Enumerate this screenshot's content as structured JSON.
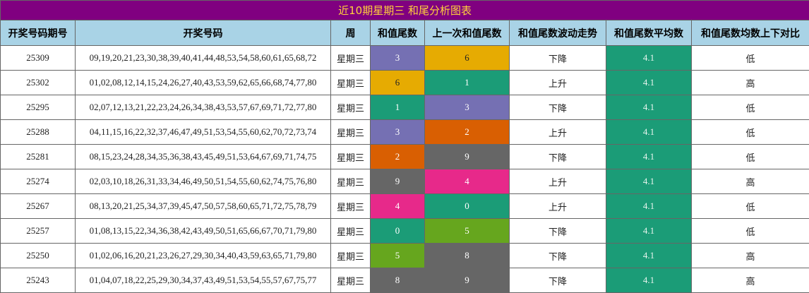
{
  "title": "近10期星期三 和尾分析图表",
  "headers": [
    "开奖号码期号",
    "开奖号码",
    "周",
    "和值尾数",
    "上一次和值尾数",
    "和值尾数波动走势",
    "和值尾数平均数",
    "和值尾数均数上下对比"
  ],
  "digit_colors": {
    "0": "#1b9c77",
    "1": "#1b9c77",
    "2": "#d95f02",
    "3": "#7570b3",
    "4": "#e7298a",
    "5": "#66a61e",
    "6": "#e6ab02",
    "8": "#666666",
    "9": "#666666"
  },
  "rows": [
    {
      "issue": "25309",
      "numbers": "09,19,20,21,23,30,38,39,40,41,44,48,53,54,58,60,61,65,68,72",
      "week": "星期三",
      "tail": "3",
      "prev_tail": "6",
      "trend": "下降",
      "avg": "4.1",
      "compare": "低"
    },
    {
      "issue": "25302",
      "numbers": "01,02,08,12,14,15,24,26,27,40,43,53,59,62,65,66,68,74,77,80",
      "week": "星期三",
      "tail": "6",
      "prev_tail": "1",
      "trend": "上升",
      "avg": "4.1",
      "compare": "高"
    },
    {
      "issue": "25295",
      "numbers": "02,07,12,13,21,22,23,24,26,34,38,43,53,57,67,69,71,72,77,80",
      "week": "星期三",
      "tail": "1",
      "prev_tail": "3",
      "trend": "下降",
      "avg": "4.1",
      "compare": "低"
    },
    {
      "issue": "25288",
      "numbers": "04,11,15,16,22,32,37,46,47,49,51,53,54,55,60,62,70,72,73,74",
      "week": "星期三",
      "tail": "3",
      "prev_tail": "2",
      "trend": "上升",
      "avg": "4.1",
      "compare": "低"
    },
    {
      "issue": "25281",
      "numbers": "08,15,23,24,28,34,35,36,38,43,45,49,51,53,64,67,69,71,74,75",
      "week": "星期三",
      "tail": "2",
      "prev_tail": "9",
      "trend": "下降",
      "avg": "4.1",
      "compare": "低"
    },
    {
      "issue": "25274",
      "numbers": "02,03,10,18,26,31,33,34,46,49,50,51,54,55,60,62,74,75,76,80",
      "week": "星期三",
      "tail": "9",
      "prev_tail": "4",
      "trend": "上升",
      "avg": "4.1",
      "compare": "高"
    },
    {
      "issue": "25267",
      "numbers": "08,13,20,21,25,34,37,39,45,47,50,57,58,60,65,71,72,75,78,79",
      "week": "星期三",
      "tail": "4",
      "prev_tail": "0",
      "trend": "上升",
      "avg": "4.1",
      "compare": "低"
    },
    {
      "issue": "25257",
      "numbers": "01,08,13,15,22,34,36,38,42,43,49,50,51,65,66,67,70,71,79,80",
      "week": "星期三",
      "tail": "0",
      "prev_tail": "5",
      "trend": "下降",
      "avg": "4.1",
      "compare": "低"
    },
    {
      "issue": "25250",
      "numbers": "01,02,06,16,20,21,23,26,27,29,30,34,40,43,59,63,65,71,79,80",
      "week": "星期三",
      "tail": "5",
      "prev_tail": "8",
      "trend": "下降",
      "avg": "4.1",
      "compare": "高"
    },
    {
      "issue": "25243",
      "numbers": "01,04,07,18,22,25,29,30,34,37,43,49,51,53,54,55,57,67,75,77",
      "week": "星期三",
      "tail": "8",
      "prev_tail": "9",
      "trend": "下降",
      "avg": "4.1",
      "compare": "高"
    }
  ]
}
